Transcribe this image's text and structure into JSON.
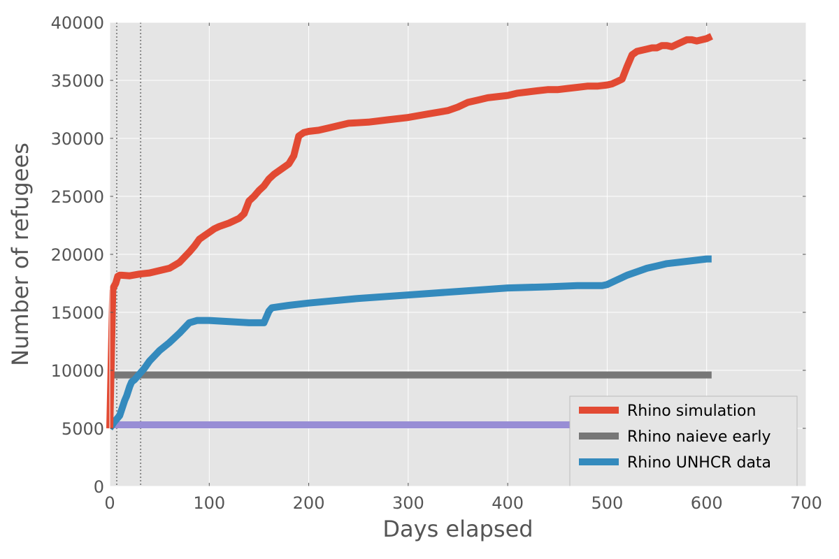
{
  "chart_data": {
    "type": "line",
    "title": "",
    "xlabel": "Days elapsed",
    "ylabel": "Number of refugees",
    "xlim": [
      0,
      700
    ],
    "ylim": [
      0,
      40000
    ],
    "xticks": [
      0,
      100,
      200,
      300,
      400,
      500,
      600,
      700
    ],
    "yticks": [
      0,
      5000,
      10000,
      15000,
      20000,
      25000,
      30000,
      35000,
      40000
    ],
    "grid": true,
    "legend_position": "lower-right",
    "vlines": [
      7,
      31
    ],
    "series": [
      {
        "name": "Rhino simulation",
        "color": "#e24a33",
        "in_legend": true,
        "x": [
          0,
          3,
          4,
          6,
          8,
          10,
          12,
          20,
          30,
          40,
          50,
          60,
          70,
          80,
          85,
          90,
          95,
          100,
          105,
          110,
          120,
          130,
          135,
          140,
          145,
          150,
          155,
          160,
          165,
          170,
          175,
          180,
          185,
          190,
          195,
          200,
          210,
          220,
          230,
          240,
          260,
          280,
          300,
          320,
          340,
          350,
          360,
          370,
          380,
          400,
          410,
          420,
          430,
          440,
          450,
          460,
          470,
          480,
          490,
          500,
          505,
          510,
          515,
          520,
          525,
          530,
          540,
          545,
          550,
          555,
          560,
          565,
          570,
          580,
          585,
          590,
          600,
          605
        ],
        "y": [
          5000,
          16900,
          17200,
          17500,
          18100,
          18200,
          18200,
          18150,
          18300,
          18400,
          18600,
          18800,
          19300,
          20200,
          20700,
          21300,
          21600,
          21900,
          22200,
          22400,
          22700,
          23100,
          23500,
          24600,
          25000,
          25500,
          25900,
          26500,
          26900,
          27200,
          27500,
          27800,
          28500,
          30200,
          30500,
          30600,
          30700,
          30900,
          31100,
          31300,
          31400,
          31600,
          31800,
          32100,
          32400,
          32700,
          33100,
          33300,
          33500,
          33700,
          33900,
          34000,
          34100,
          34200,
          34200,
          34300,
          34400,
          34500,
          34500,
          34600,
          34700,
          34900,
          35100,
          36200,
          37200,
          37500,
          37700,
          37800,
          37800,
          38000,
          38000,
          37900,
          38100,
          38500,
          38500,
          38400,
          38600,
          38800
        ]
      },
      {
        "name": "Rhino naieve early",
        "color": "#777777",
        "in_legend": true,
        "x": [
          0,
          605
        ],
        "y": [
          9600,
          9600
        ]
      },
      {
        "name": "Rhino UNHCR data",
        "color": "#348abd",
        "in_legend": true,
        "x": [
          0,
          5,
          10,
          15,
          17,
          20,
          22,
          25,
          28,
          30,
          35,
          40,
          50,
          60,
          70,
          80,
          88,
          100,
          120,
          140,
          155,
          160,
          163,
          180,
          200,
          250,
          300,
          350,
          400,
          440,
          470,
          480,
          495,
          500,
          510,
          520,
          540,
          550,
          560,
          580,
          600,
          605
        ],
        "y": [
          5000,
          5600,
          6100,
          7400,
          7800,
          8600,
          9000,
          9200,
          9500,
          9700,
          10200,
          10800,
          11700,
          12400,
          13200,
          14100,
          14300,
          14300,
          14200,
          14100,
          14100,
          15100,
          15400,
          15600,
          15800,
          16200,
          16500,
          16800,
          17100,
          17200,
          17300,
          17300,
          17300,
          17400,
          17800,
          18200,
          18800,
          19000,
          19200,
          19400,
          19600,
          19600
        ]
      },
      {
        "name": "",
        "color": "#988ed5",
        "in_legend": false,
        "x": [
          0,
          470
        ],
        "y": [
          5300,
          5300
        ]
      }
    ]
  }
}
